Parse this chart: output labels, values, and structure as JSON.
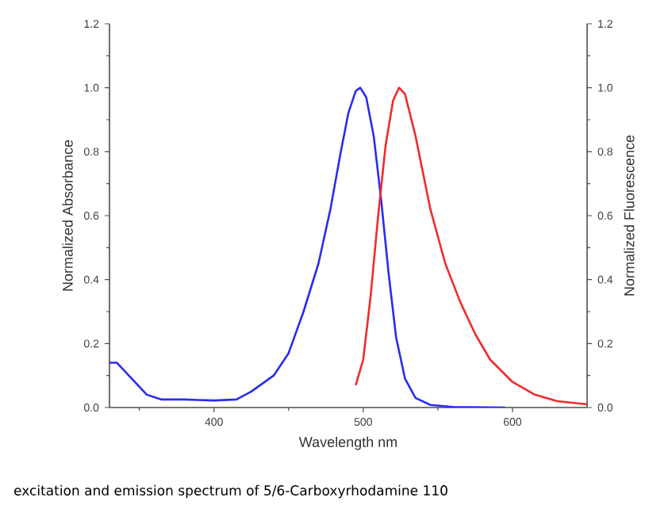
{
  "chart_data": {
    "type": "line",
    "xlabel": "Wavelength nm",
    "ylabel": "Normalized Absorbance",
    "y2label": "Normalized Fluorescence",
    "annotations": [
      "excitation and emission spectrum of 5/6-Carboxyrhodamine 110"
    ],
    "xlim": [
      330,
      650
    ],
    "xticks": [
      {
        "value": 350,
        "label": null
      },
      400,
      {
        "value": 450,
        "label": null
      },
      500,
      {
        "value": 550,
        "label": null
      },
      600
    ],
    "ylim": [
      0,
      1.2
    ],
    "yticks": [
      {
        "value": 0,
        "label": "0.0"
      },
      {
        "value": 0.1,
        "label": null
      },
      0.2,
      {
        "value": 0.3,
        "label": null
      },
      0.4,
      {
        "value": 0.5,
        "label": null
      },
      0.6,
      {
        "value": 0.7,
        "label": null
      },
      0.8,
      {
        "value": 0.9,
        "label": null
      },
      {
        "value": 1.0,
        "label": "1.0"
      },
      {
        "value": 1.1,
        "label": null
      },
      1.2
    ],
    "y2lim": [
      0,
      1.2
    ],
    "y2ticks": [
      {
        "value": 0,
        "label": "0.0"
      },
      {
        "value": 0.1,
        "label": null
      },
      0.2,
      {
        "value": 0.3,
        "label": null
      },
      0.4,
      {
        "value": 0.5,
        "label": null
      },
      0.6,
      {
        "value": 0.7,
        "label": null
      },
      0.8,
      {
        "value": 0.9,
        "label": null
      },
      {
        "value": 1.0,
        "label": "1.0"
      },
      {
        "value": 1.1,
        "label": null
      },
      1.2
    ],
    "series": [
      {
        "color": "#2b2bf0",
        "x": [
          330,
          335,
          345,
          355,
          365,
          380,
          400,
          415,
          425,
          440,
          450,
          460,
          470,
          478,
          485,
          490,
          495,
          498,
          502,
          507,
          512,
          517,
          522,
          528,
          535,
          545,
          560,
          595
        ],
        "values": [
          0.14,
          0.14,
          0.09,
          0.04,
          0.025,
          0.025,
          0.022,
          0.025,
          0.05,
          0.1,
          0.17,
          0.3,
          0.45,
          0.62,
          0.8,
          0.92,
          0.99,
          1.0,
          0.97,
          0.85,
          0.65,
          0.42,
          0.22,
          0.09,
          0.03,
          0.008,
          0.002,
          0.0
        ]
      },
      {
        "color": "#f02b2b",
        "axis": "y2",
        "x": [
          495,
          500,
          505,
          510,
          515,
          520,
          524,
          528,
          535,
          545,
          555,
          565,
          575,
          585,
          600,
          615,
          630,
          650
        ],
        "values": [
          0.07,
          0.15,
          0.35,
          0.6,
          0.82,
          0.96,
          1.0,
          0.98,
          0.85,
          0.62,
          0.45,
          0.33,
          0.23,
          0.15,
          0.08,
          0.04,
          0.02,
          0.01
        ]
      }
    ]
  }
}
